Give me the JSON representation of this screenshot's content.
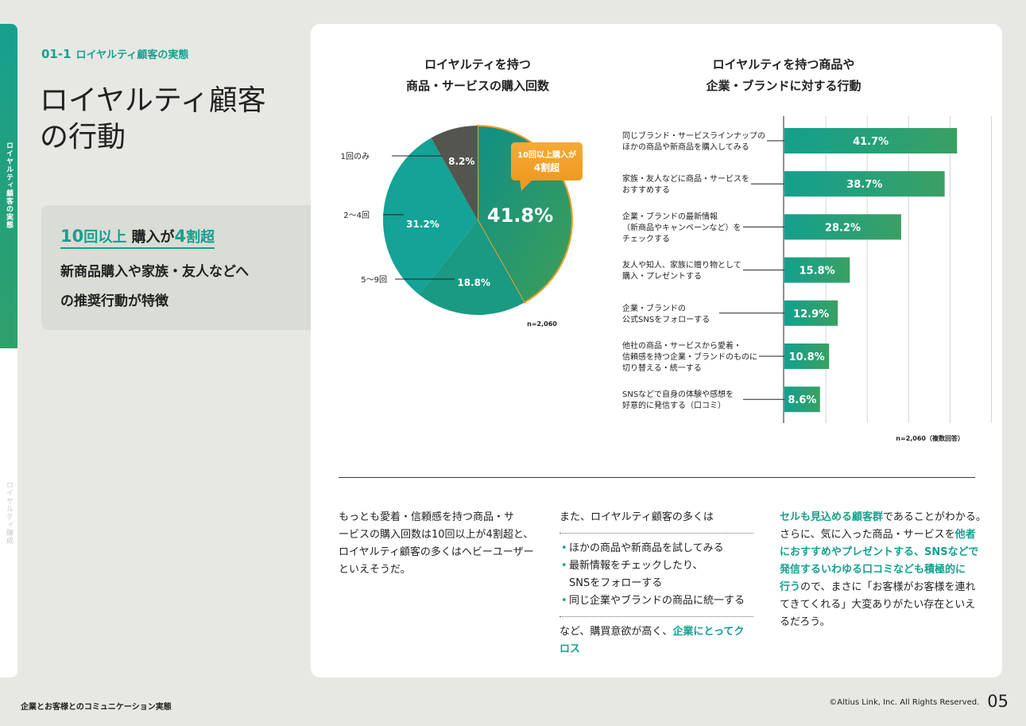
{
  "sidebar": {
    "active_tab": "ロイヤルティ顧客の実態",
    "inactive_tab": "ロイヤルティ醸成"
  },
  "header": {
    "section_code": "01-1",
    "section_label": "ロイヤルティ顧客の実態",
    "title_line1": "ロイヤルティ顧客",
    "title_line2": "の行動"
  },
  "summary": {
    "highlight_num1": "10",
    "highlight_text1": "回以上",
    "highlight_text2": "購入が",
    "highlight_num2": "4",
    "highlight_text3": "割超",
    "line1": "新商品購入や家族・友人などへ",
    "line2": "の推奨行動が特徴"
  },
  "colors": {
    "accent": "#16a08e",
    "accent_green": "#3a9f5c",
    "orange": "#f2a02b",
    "dark": "#55554f",
    "mid_teal": "#14a396",
    "low_teal": "#1a9a83"
  },
  "chart_data": [
    {
      "type": "pie",
      "title_line1": "ロイヤルティを持つ",
      "title_line2": "商品・サービスの購入回数",
      "slices": [
        {
          "label": "10回以上",
          "value": 41.8,
          "display": "41.8%"
        },
        {
          "label": "5〜9回",
          "value": 18.8,
          "display": "18.8%"
        },
        {
          "label": "2〜4回",
          "value": 31.2,
          "display": "31.2%"
        },
        {
          "label": "1回のみ",
          "value": 8.2,
          "display": "8.2%"
        }
      ],
      "callout_line1": "10回以上購入が",
      "callout_line2": "4割超",
      "note": "n=2,060"
    },
    {
      "type": "bar",
      "orientation": "horizontal",
      "title_line1": "ロイヤルティを持つ商品や",
      "title_line2": "企業・ブランドに対する行動",
      "xlim": [
        0,
        50
      ],
      "grid": true,
      "categories": [
        [
          "同じブランド・サービスラインナップの",
          "ほかの商品や新商品を購入してみる"
        ],
        [
          "家族・友人などに商品・サービスを",
          "おすすめする"
        ],
        [
          "企業・ブランドの最新情報",
          "（新商品やキャンペーンなど）を",
          "チェックする"
        ],
        [
          "友人や知人、家族に贈り物として",
          "購入・プレゼントする"
        ],
        [
          "企業・ブランドの",
          "公式SNSをフォローする"
        ],
        [
          "他社の商品・サービスから愛着・",
          "信頼感を持つ企業・ブランドのものに",
          "切り替える・統一する"
        ],
        [
          "SNSなどで自身の体験や感想を",
          "好意的に発信する（口コミ）"
        ]
      ],
      "values": [
        41.7,
        38.7,
        28.2,
        15.8,
        12.9,
        10.8,
        8.6
      ],
      "value_labels": [
        "41.7%",
        "38.7%",
        "28.2%",
        "15.8%",
        "12.9%",
        "10.8%",
        "8.6%"
      ],
      "note": "n=2,060（複数回答）"
    }
  ],
  "body": {
    "col1": [
      "もっとも愛着・信頼感を持つ商品・サ",
      "ービスの購入回数は10回以上が4割超と、",
      "ロイヤルティ顧客の多くはヘビーユーザー",
      "といえそうだ。"
    ],
    "col2_intro": "また、ロイヤルティ顧客の多くは",
    "col2_bullets": [
      [
        "ほかの商品や新商品を試してみる"
      ],
      [
        "最新情報をチェックしたり、",
        "SNSをフォローする"
      ],
      [
        "同じ企業やブランドの商品に統一する"
      ]
    ],
    "col2_outro": "など、購買意欲が高く、",
    "col2_outro_hl": "企業にとってクロス",
    "col3": [
      {
        "hl": "セルも見込める顧客群",
        "text": "であることがわかる。"
      },
      {
        "text": "さらに、気に入った商品・サービスを",
        "hl": "他者"
      },
      {
        "hl": "におすすめやプレゼントする、SNSなどで"
      },
      {
        "hl": "発信するいわゆる口コミなども積極的に"
      },
      {
        "hl": "行う",
        "text": "ので、まさに「お客様がお客様を連れ"
      },
      {
        "text": "てきてくれる」大変ありがたい存在といえ"
      },
      {
        "text": "るだろう。"
      }
    ]
  },
  "footer": {
    "left": "企業とお客様とのコミュニケーション実態",
    "copyright": "©Altius Link, Inc. All Rights Reserved.",
    "page": "05"
  }
}
